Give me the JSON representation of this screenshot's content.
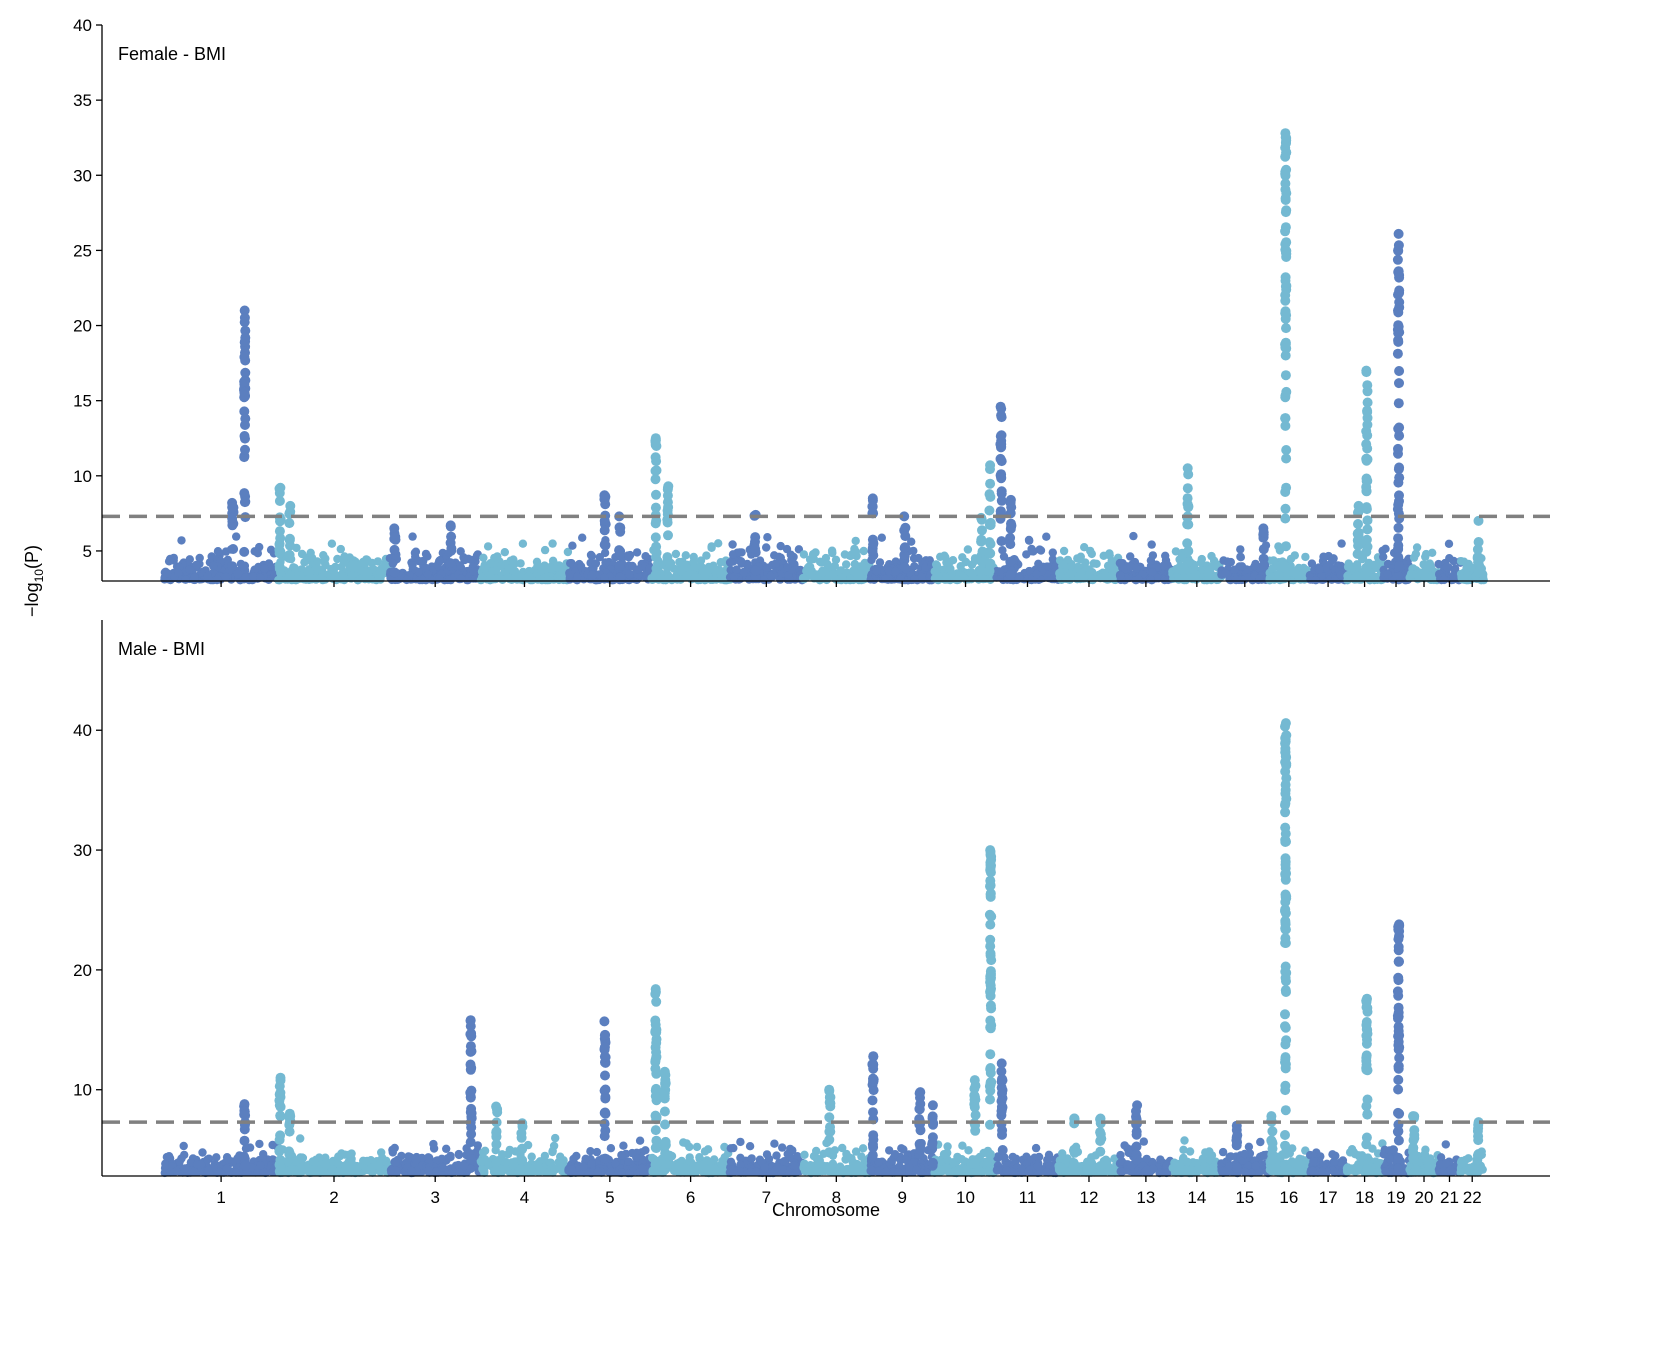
{
  "chart_data": {
    "type": "scatter",
    "subtype": "manhattan",
    "xlabel": "Chromosome",
    "ylabel": {
      "prefix": "−log",
      "sub": "10",
      "suffix": "(P)"
    },
    "colors": {
      "odd": "#5b7fbf",
      "even": "#74b9d2",
      "threshold": "#808080"
    },
    "threshold": 7.3,
    "chromosomes": [
      {
        "label": "1",
        "length_mb": 249
      },
      {
        "label": "2",
        "length_mb": 243
      },
      {
        "label": "3",
        "length_mb": 198
      },
      {
        "label": "4",
        "length_mb": 191
      },
      {
        "label": "5",
        "length_mb": 181
      },
      {
        "label": "6",
        "length_mb": 171
      },
      {
        "label": "7",
        "length_mb": 159
      },
      {
        "label": "8",
        "length_mb": 146
      },
      {
        "label": "9",
        "length_mb": 141
      },
      {
        "label": "10",
        "length_mb": 135
      },
      {
        "label": "11",
        "length_mb": 135
      },
      {
        "label": "12",
        "length_mb": 133
      },
      {
        "label": "13",
        "length_mb": 115
      },
      {
        "label": "14",
        "length_mb": 107
      },
      {
        "label": "15",
        "length_mb": 102
      },
      {
        "label": "16",
        "length_mb": 90
      },
      {
        "label": "17",
        "length_mb": 81
      },
      {
        "label": "18",
        "length_mb": 78
      },
      {
        "label": "19",
        "length_mb": 59
      },
      {
        "label": "20",
        "length_mb": 63
      },
      {
        "label": "21",
        "length_mb": 48
      },
      {
        "label": "22",
        "length_mb": 51
      }
    ],
    "xlim_mb": [
      -135,
      3020
    ],
    "panels": [
      {
        "title": "Female - BMI",
        "ylim": [
          3,
          40
        ],
        "yticks": [
          5,
          10,
          15,
          20,
          25,
          30,
          35,
          40
        ],
        "peaks": [
          {
            "chr": 1,
            "pos": 176,
            "max": 21
          },
          {
            "chr": 1,
            "pos": 150,
            "max": 8.2
          },
          {
            "chr": 2,
            "pos": 4,
            "max": 9.2
          },
          {
            "chr": 2,
            "pos": 25,
            "max": 8
          },
          {
            "chr": 3,
            "pos": 11,
            "max": 6.5
          },
          {
            "chr": 3,
            "pos": 133,
            "max": 6.7
          },
          {
            "chr": 5,
            "pos": 80,
            "max": 8.7
          },
          {
            "chr": 5,
            "pos": 112,
            "max": 7.3
          },
          {
            "chr": 6,
            "pos": 10,
            "max": 12.5
          },
          {
            "chr": 6,
            "pos": 36,
            "max": 9.3
          },
          {
            "chr": 7,
            "pos": 55,
            "max": 7.4
          },
          {
            "chr": 9,
            "pos": 7,
            "max": 8.5
          },
          {
            "chr": 9,
            "pos": 76,
            "max": 7.3
          },
          {
            "chr": 10,
            "pos": 103,
            "max": 7.2
          },
          {
            "chr": 10,
            "pos": 121,
            "max": 10.7
          },
          {
            "chr": 11,
            "pos": 10,
            "max": 14.6
          },
          {
            "chr": 11,
            "pos": 31,
            "max": 8.4
          },
          {
            "chr": 14,
            "pos": 34,
            "max": 10.5
          },
          {
            "chr": 15,
            "pos": 92,
            "max": 6.5
          },
          {
            "chr": 16,
            "pos": 38,
            "max": 32.8
          },
          {
            "chr": 18,
            "pos": 25,
            "max": 8
          },
          {
            "chr": 18,
            "pos": 44,
            "max": 17
          },
          {
            "chr": 19,
            "pos": 35,
            "max": 26.1
          },
          {
            "chr": 22,
            "pos": 38,
            "max": 7
          }
        ]
      },
      {
        "title": "Male - BMI",
        "ylim": [
          2.8,
          49.2
        ],
        "yticks": [
          10,
          20,
          30,
          40
        ],
        "peaks": [
          {
            "chr": 1,
            "pos": 176,
            "max": 8.8
          },
          {
            "chr": 2,
            "pos": 4,
            "max": 11
          },
          {
            "chr": 2,
            "pos": 25,
            "max": 8
          },
          {
            "chr": 3,
            "pos": 177,
            "max": 15.8
          },
          {
            "chr": 4,
            "pos": 35,
            "max": 8.6
          },
          {
            "chr": 4,
            "pos": 90,
            "max": 7.2
          },
          {
            "chr": 5,
            "pos": 80,
            "max": 15.7
          },
          {
            "chr": 6,
            "pos": 10,
            "max": 18.4
          },
          {
            "chr": 6,
            "pos": 30,
            "max": 11.5
          },
          {
            "chr": 8,
            "pos": 59,
            "max": 10
          },
          {
            "chr": 9,
            "pos": 7,
            "max": 12.8
          },
          {
            "chr": 9,
            "pos": 109,
            "max": 9.8
          },
          {
            "chr": 9,
            "pos": 137,
            "max": 8.7
          },
          {
            "chr": 10,
            "pos": 88,
            "max": 10.8
          },
          {
            "chr": 10,
            "pos": 122,
            "max": 30
          },
          {
            "chr": 11,
            "pos": 12,
            "max": 12.2
          },
          {
            "chr": 12,
            "pos": 35,
            "max": 7.6
          },
          {
            "chr": 12,
            "pos": 92,
            "max": 7.6
          },
          {
            "chr": 13,
            "pos": 37,
            "max": 8.7
          },
          {
            "chr": 15,
            "pos": 34,
            "max": 7
          },
          {
            "chr": 16,
            "pos": 8,
            "max": 7.8
          },
          {
            "chr": 16,
            "pos": 38,
            "max": 40.6
          },
          {
            "chr": 18,
            "pos": 44,
            "max": 17.6
          },
          {
            "chr": 19,
            "pos": 35,
            "max": 23.8
          },
          {
            "chr": 20,
            "pos": 9,
            "max": 7.8
          },
          {
            "chr": 22,
            "pos": 38,
            "max": 7.3
          }
        ]
      }
    ]
  }
}
